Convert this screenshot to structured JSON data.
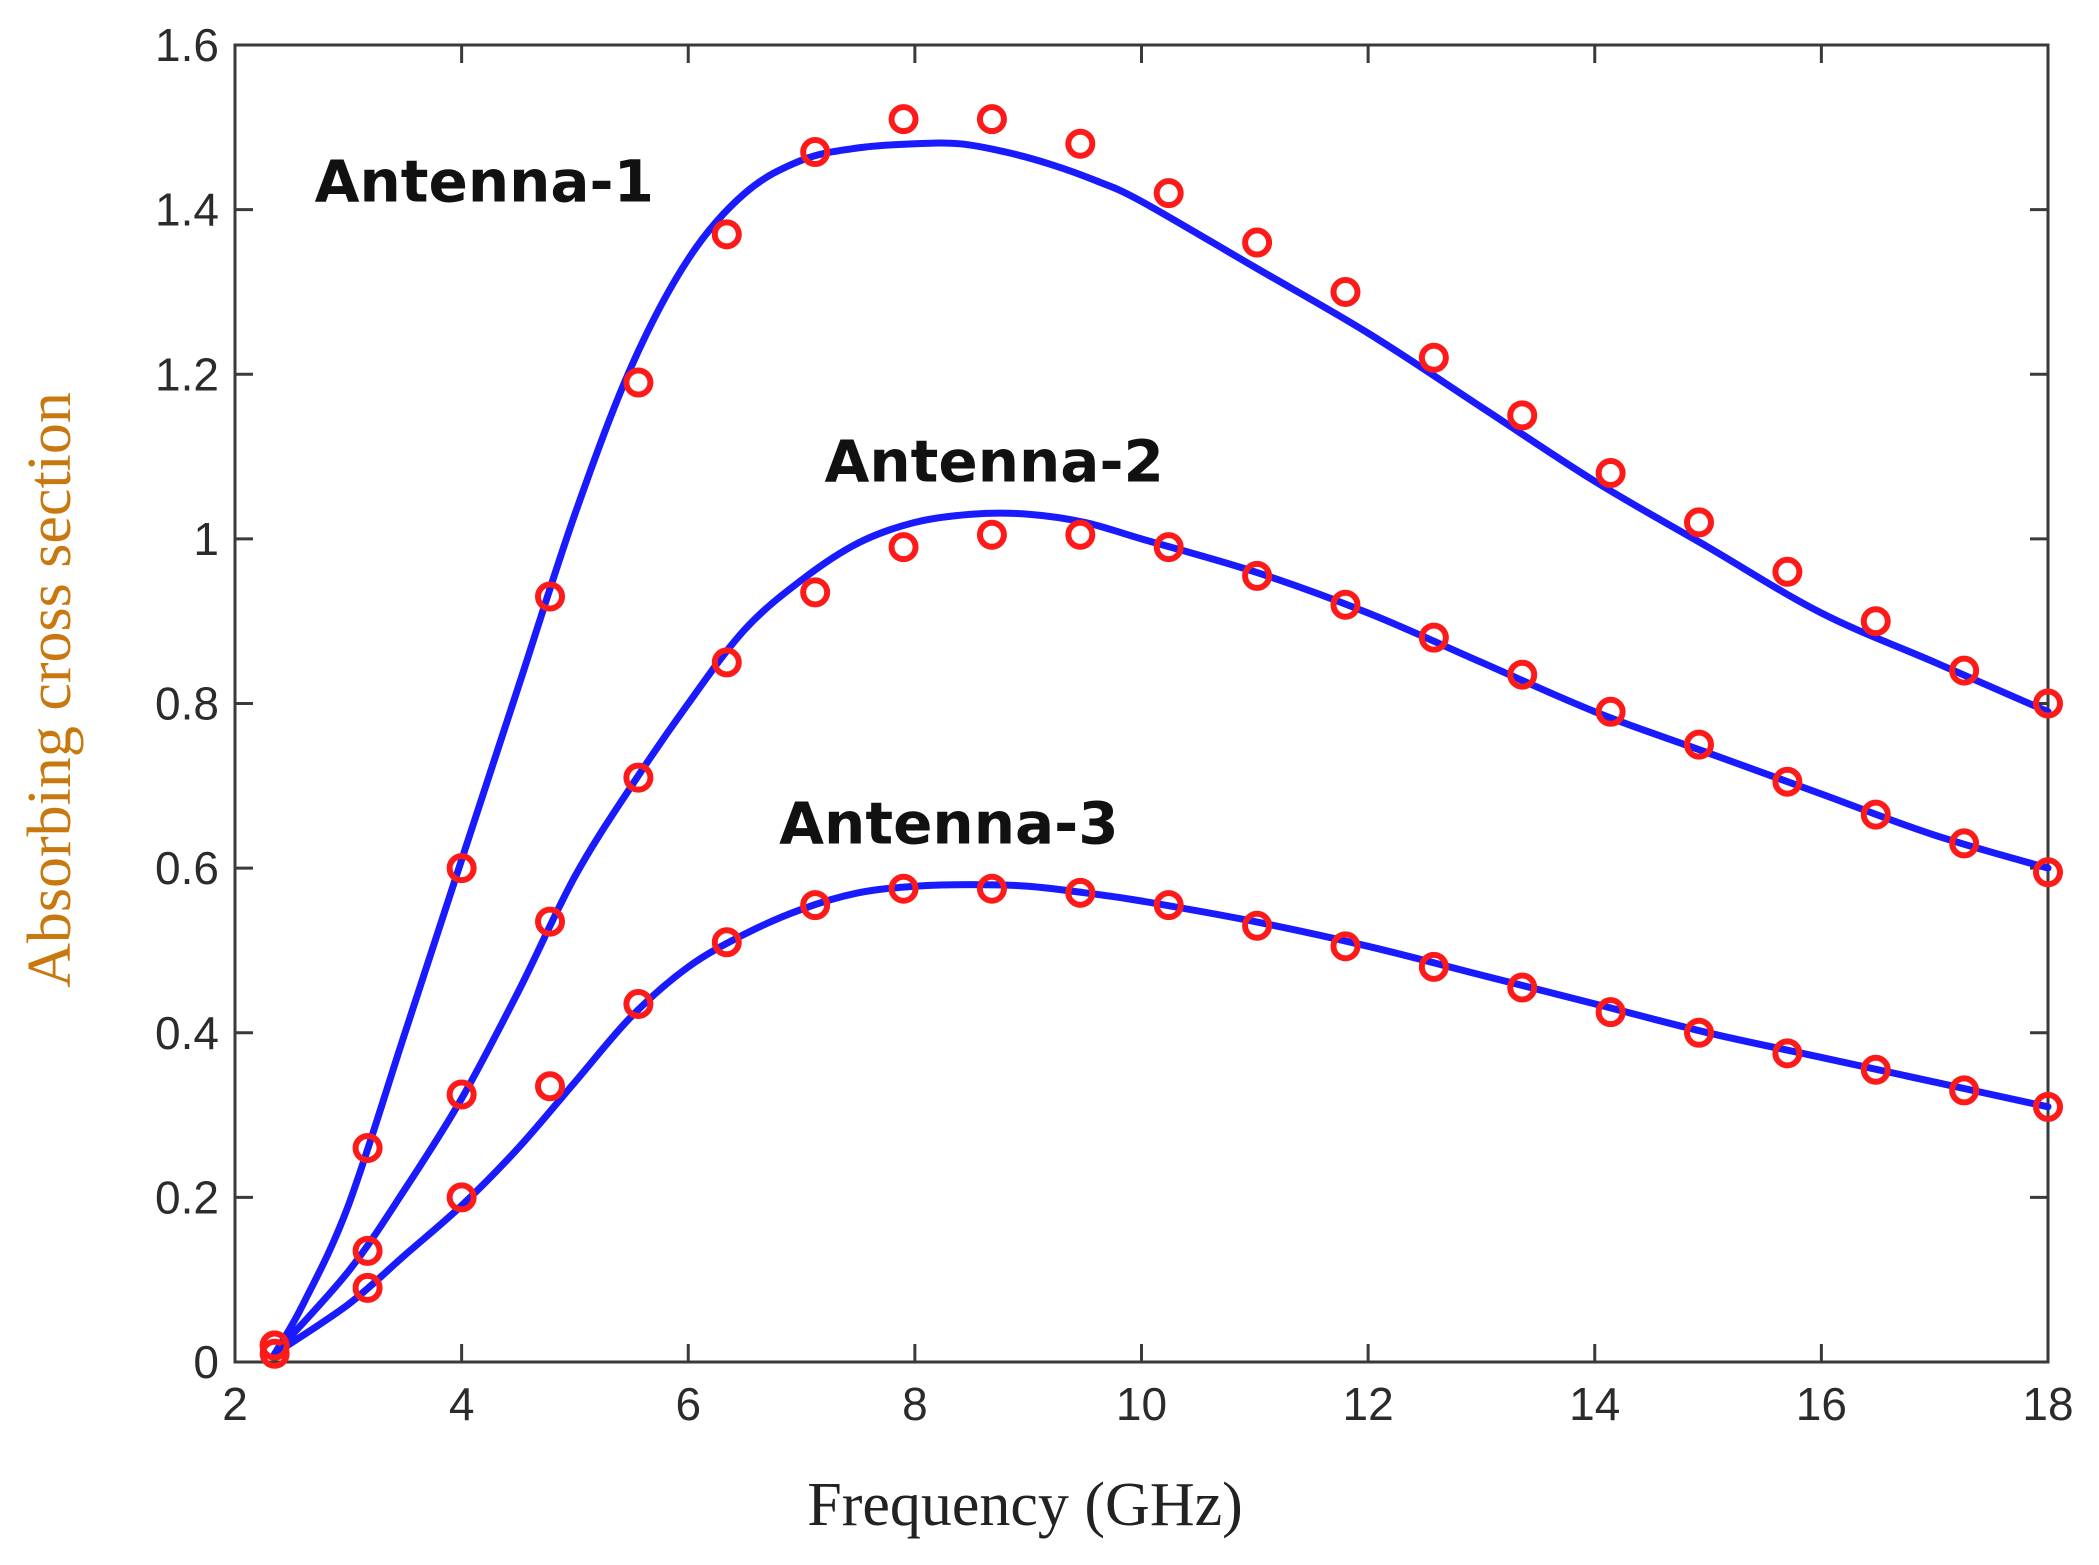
{
  "colors": {
    "line": "#1a1aff",
    "marker": "#ff1a1a",
    "axis": "#3a3a3a",
    "y_title": "#c8780e",
    "x_title": "#222222"
  },
  "chart_data": {
    "type": "line",
    "title": "",
    "xlabel": "Frequency (GHz)",
    "ylabel": "Absorbing cross section",
    "xlim": [
      2,
      18
    ],
    "ylim": [
      0,
      1.6
    ],
    "xticks": [
      2,
      4,
      6,
      8,
      10,
      12,
      14,
      16,
      18
    ],
    "xtick_labels": [
      "2",
      "4",
      "6",
      "8",
      "10",
      "12",
      "14",
      "16",
      "18"
    ],
    "yticks": [
      0,
      0.2,
      0.4,
      0.6,
      0.8,
      1.0,
      1.2,
      1.4,
      1.6
    ],
    "ytick_labels": [
      "0",
      "0.2",
      "0.4",
      "0.6",
      "0.8",
      "1",
      "1.2",
      "1.4",
      "1.6"
    ],
    "grid": false,
    "series": [
      {
        "name": "Antenna-1",
        "line_x": [
          2.35,
          2.6,
          3.0,
          3.5,
          4.0,
          4.5,
          5.0,
          5.5,
          6.0,
          6.5,
          7.0,
          7.5,
          8.0,
          8.4,
          8.8,
          9.2,
          9.6,
          10.0,
          11.0,
          12.0,
          13.0,
          14.0,
          15.0,
          16.0,
          17.0,
          18.0
        ],
        "line_y": [
          0.01,
          0.07,
          0.19,
          0.4,
          0.61,
          0.82,
          1.03,
          1.21,
          1.34,
          1.42,
          1.46,
          1.475,
          1.48,
          1.48,
          1.47,
          1.455,
          1.435,
          1.41,
          1.33,
          1.25,
          1.16,
          1.07,
          0.99,
          0.91,
          0.85,
          0.79
        ],
        "marker_x": [
          2.35,
          3.17,
          4.0,
          4.78,
          5.56,
          6.34,
          7.12,
          7.9,
          8.68,
          9.46,
          10.24,
          11.02,
          11.8,
          12.58,
          13.36,
          14.14,
          14.92,
          15.7,
          16.48,
          17.26,
          18.0
        ],
        "marker_y": [
          0.02,
          0.26,
          0.6,
          0.93,
          1.19,
          1.37,
          1.47,
          1.51,
          1.51,
          1.48,
          1.42,
          1.36,
          1.3,
          1.22,
          1.15,
          1.08,
          1.02,
          0.96,
          0.9,
          0.84,
          0.8
        ]
      },
      {
        "name": "Antenna-2",
        "line_x": [
          2.35,
          3.0,
          3.5,
          4.0,
          4.5,
          5.0,
          5.5,
          6.0,
          6.5,
          7.0,
          7.5,
          8.0,
          8.5,
          9.0,
          9.5,
          10.0,
          11.0,
          12.0,
          13.0,
          14.0,
          15.0,
          16.0,
          17.0,
          18.0
        ],
        "line_y": [
          0.01,
          0.11,
          0.21,
          0.32,
          0.45,
          0.59,
          0.7,
          0.8,
          0.89,
          0.95,
          0.995,
          1.02,
          1.03,
          1.03,
          1.02,
          1.0,
          0.96,
          0.91,
          0.85,
          0.79,
          0.74,
          0.69,
          0.64,
          0.6
        ],
        "marker_x": [
          2.35,
          3.17,
          4.0,
          4.78,
          5.56,
          6.34,
          7.12,
          7.9,
          8.68,
          9.46,
          10.24,
          11.02,
          11.8,
          12.58,
          13.36,
          14.14,
          14.92,
          15.7,
          16.48,
          17.26,
          18.0
        ],
        "marker_y": [
          0.01,
          0.135,
          0.325,
          0.535,
          0.71,
          0.85,
          0.935,
          0.99,
          1.005,
          1.005,
          0.99,
          0.955,
          0.92,
          0.88,
          0.835,
          0.79,
          0.75,
          0.705,
          0.665,
          0.63,
          0.595
        ]
      },
      {
        "name": "Antenna-3",
        "line_x": [
          2.35,
          3.0,
          3.5,
          4.0,
          4.5,
          5.0,
          5.5,
          6.0,
          6.5,
          7.0,
          7.5,
          8.0,
          8.5,
          9.0,
          9.5,
          10.0,
          11.0,
          12.0,
          13.0,
          14.0,
          15.0,
          16.0,
          17.0,
          18.0
        ],
        "line_y": [
          0.01,
          0.07,
          0.13,
          0.19,
          0.26,
          0.34,
          0.42,
          0.48,
          0.52,
          0.55,
          0.57,
          0.578,
          0.58,
          0.578,
          0.57,
          0.56,
          0.535,
          0.505,
          0.47,
          0.435,
          0.4,
          0.37,
          0.34,
          0.31
        ],
        "marker_x": [
          2.35,
          3.17,
          4.0,
          4.78,
          5.56,
          6.34,
          7.12,
          7.9,
          8.68,
          9.46,
          10.24,
          11.02,
          11.8,
          12.58,
          13.36,
          14.14,
          14.92,
          15.7,
          16.48,
          17.26,
          18.0
        ],
        "marker_y": [
          0.02,
          0.09,
          0.2,
          0.335,
          0.435,
          0.51,
          0.555,
          0.575,
          0.575,
          0.57,
          0.555,
          0.53,
          0.505,
          0.48,
          0.455,
          0.425,
          0.4,
          0.375,
          0.355,
          0.33,
          0.31
        ]
      }
    ],
    "annotations": [
      {
        "text": "Antenna-1",
        "x": 4.2,
        "y": 1.41
      },
      {
        "text": "Antenna-2",
        "x": 8.7,
        "y": 1.07
      },
      {
        "text": "Antenna-3",
        "x": 8.3,
        "y": 0.63
      }
    ]
  }
}
